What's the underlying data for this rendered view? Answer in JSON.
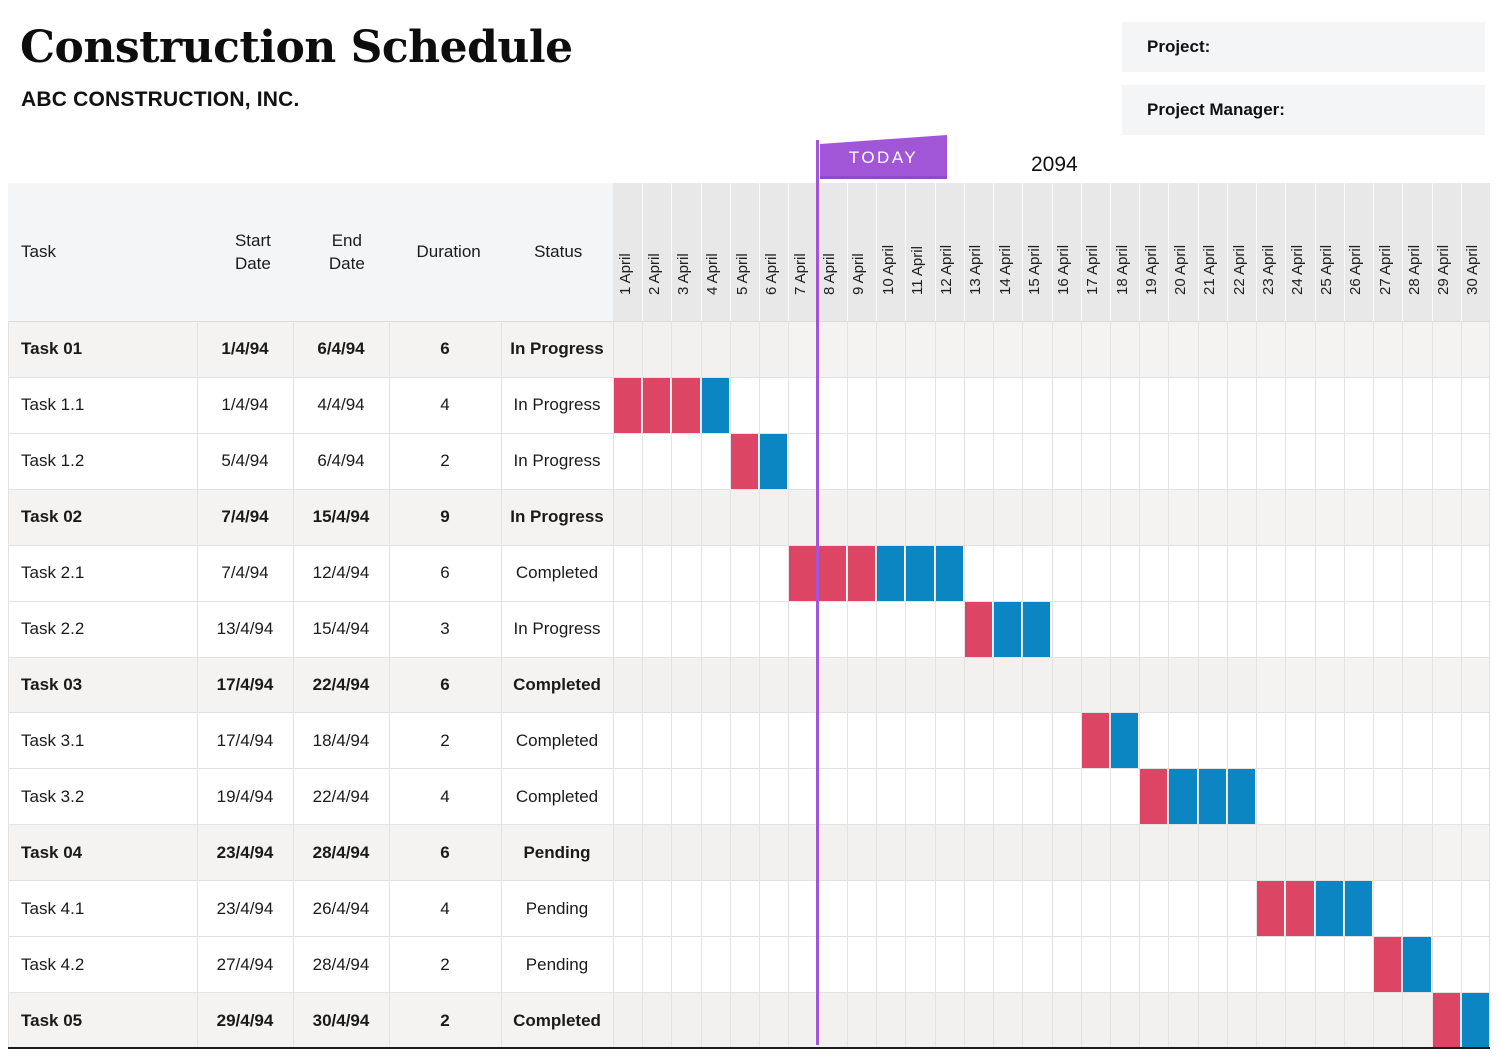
{
  "page": {
    "title": "Construction Schedule",
    "company": "ABC CONSTRUCTION, INC."
  },
  "project_fields": [
    {
      "label": "Project:",
      "value": ""
    },
    {
      "label": "Project Manager:",
      "value": ""
    }
  ],
  "today": {
    "label": "TODAY",
    "year": "2094"
  },
  "table": {
    "columns": [
      "Task",
      "Start Date",
      "End Date",
      "Duration",
      "Status"
    ]
  },
  "colors": {
    "bar_red": "#dd4564",
    "bar_blue": "#0b86c2",
    "today_purple": "#a156d8",
    "flag_bottom_edge": "#8f4ac4",
    "left_header_bg": "#f4f5f7",
    "gantt_header_bg": "#e8e8e9",
    "summary_row_bg": "#f4f3f1",
    "summary_band_bg": "#f2f1ef"
  },
  "chart_data": {
    "type": "gantt",
    "title": "Construction Schedule",
    "timeline": {
      "unit": "day",
      "labels": [
        "1 April",
        "2 April",
        "3 April",
        "4 April",
        "5 April",
        "6 April",
        "7 April",
        "8 April",
        "9 April",
        "10 April",
        "11 April",
        "12 April",
        "13 April",
        "14 April",
        "15 April",
        "16 April",
        "17 April",
        "18 April",
        "19 April",
        "20 April",
        "21 April",
        "22 April",
        "23 April",
        "24 April",
        "25 April",
        "26 April",
        "27 April",
        "28 April",
        "29 April",
        "30 April"
      ],
      "year_label": "2094",
      "today_line_after_day": 7
    },
    "rows": [
      {
        "task": "Task 01",
        "start_date": "1/4/94",
        "end_date": "6/4/94",
        "duration": "6",
        "status": "In Progress",
        "type": "summary",
        "band_days": [
          1,
          6
        ],
        "red_days": [],
        "blue_days": []
      },
      {
        "task": "Task 1.1",
        "start_date": "1/4/94",
        "end_date": "4/4/94",
        "duration": "4",
        "status": "In Progress",
        "type": "subtask",
        "band_days": null,
        "red_days": [
          1,
          2,
          3
        ],
        "blue_days": [
          4
        ]
      },
      {
        "task": "Task 1.2",
        "start_date": "5/4/94",
        "end_date": "6/4/94",
        "duration": "2",
        "status": "In Progress",
        "type": "subtask",
        "band_days": null,
        "red_days": [
          5
        ],
        "blue_days": [
          6
        ]
      },
      {
        "task": "Task 02",
        "start_date": "7/4/94",
        "end_date": "15/4/94",
        "duration": "9",
        "status": "In Progress",
        "type": "summary",
        "band_days": [
          1,
          15
        ],
        "red_days": [],
        "blue_days": []
      },
      {
        "task": "Task 2.1",
        "start_date": "7/4/94",
        "end_date": "12/4/94",
        "duration": "6",
        "status": "Completed",
        "type": "subtask",
        "band_days": null,
        "red_days": [
          7,
          8,
          9
        ],
        "blue_days": [
          10,
          11,
          12
        ]
      },
      {
        "task": "Task 2.2",
        "start_date": "13/4/94",
        "end_date": "15/4/94",
        "duration": "3",
        "status": "In Progress",
        "type": "subtask",
        "band_days": null,
        "red_days": [
          13
        ],
        "blue_days": [
          14,
          15
        ]
      },
      {
        "task": "Task 03",
        "start_date": "17/4/94",
        "end_date": "22/4/94",
        "duration": "6",
        "status": "Completed",
        "type": "summary",
        "band_days": [
          1,
          22
        ],
        "red_days": [],
        "blue_days": []
      },
      {
        "task": "Task 3.1",
        "start_date": "17/4/94",
        "end_date": "18/4/94",
        "duration": "2",
        "status": "Completed",
        "type": "subtask",
        "band_days": null,
        "red_days": [
          17
        ],
        "blue_days": [
          18
        ]
      },
      {
        "task": "Task 3.2",
        "start_date": "19/4/94",
        "end_date": "22/4/94",
        "duration": "4",
        "status": "Completed",
        "type": "subtask",
        "band_days": null,
        "red_days": [
          19
        ],
        "blue_days": [
          20,
          21,
          22
        ]
      },
      {
        "task": "Task 04",
        "start_date": "23/4/94",
        "end_date": "28/4/94",
        "duration": "6",
        "status": "Pending",
        "type": "summary",
        "band_days": [
          1,
          28
        ],
        "red_days": [],
        "blue_days": []
      },
      {
        "task": "Task 4.1",
        "start_date": "23/4/94",
        "end_date": "26/4/94",
        "duration": "4",
        "status": "Pending",
        "type": "subtask",
        "band_days": null,
        "red_days": [
          23,
          24
        ],
        "blue_days": [
          25,
          26
        ]
      },
      {
        "task": "Task 4.2",
        "start_date": "27/4/94",
        "end_date": "28/4/94",
        "duration": "2",
        "status": "Pending",
        "type": "subtask",
        "band_days": null,
        "red_days": [
          27
        ],
        "blue_days": [
          28
        ]
      },
      {
        "task": "Task 05",
        "start_date": "29/4/94",
        "end_date": "30/4/94",
        "duration": "2",
        "status": "Completed",
        "type": "summary",
        "band_days": [
          1,
          28
        ],
        "red_days": [
          29
        ],
        "blue_days": [
          30
        ]
      }
    ]
  }
}
